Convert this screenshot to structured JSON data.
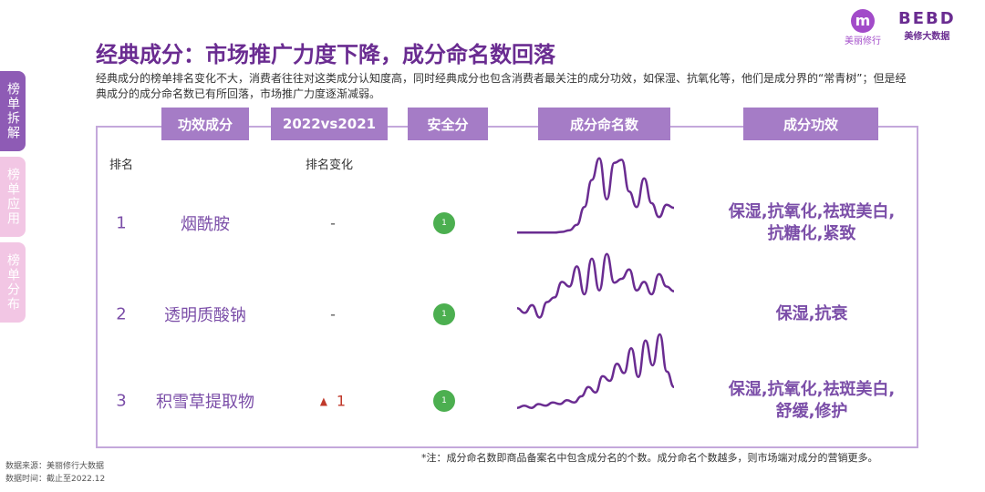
{
  "logo": {
    "brand": "美丽修行",
    "mark": "BEBD",
    "sub": "美修大数据"
  },
  "sidebar": [
    "榜单拆解",
    "榜单应用",
    "榜单分布"
  ],
  "title": "经典成分：市场推广力度下降，成分命名数回落",
  "description": "经典成分的榜单排名变化不大，消费者往往对这类成分认知度高，同时经典成分也包含消费者最关注的成分功效，如保湿、抗氧化等，他们是成分界的“常青树”；但是经典成分的成分命名数已有所回落，市场推广力度逐渐减弱。",
  "table": {
    "headers": [
      "功效成分",
      "2022vs2021",
      "安全分",
      "成分命名数",
      "成分功效"
    ],
    "sub_headers": [
      "排名",
      "排名变化"
    ],
    "rows": [
      {
        "rank": "1",
        "name": "烟酰胺",
        "change": "-",
        "safety": "1",
        "effects": [
          "保湿,抗氧化,祛斑美白,",
          "抗糖化,紧致"
        ],
        "trend": [
          2,
          2,
          2,
          2,
          2,
          2,
          3,
          5,
          12,
          35,
          70,
          98,
          45,
          92,
          96,
          55,
          35,
          72,
          40,
          22,
          38,
          34
        ]
      },
      {
        "rank": "2",
        "name": "透明质酸钠",
        "change": "-",
        "safety": "1",
        "effects": [
          "保湿,抗衰"
        ],
        "trend": [
          22,
          16,
          26,
          10,
          30,
          36,
          56,
          50,
          76,
          40,
          86,
          45,
          92,
          55,
          60,
          72,
          45,
          56,
          40,
          66,
          50,
          44
        ]
      },
      {
        "rank": "3",
        "name": "积雪草提取物",
        "change": "1",
        "direction": "up",
        "safety": "1",
        "effects": [
          "保湿,抗氧化,祛斑美白,",
          "舒缓,修护"
        ],
        "trend": [
          5,
          8,
          5,
          10,
          8,
          12,
          10,
          15,
          12,
          20,
          32,
          25,
          46,
          40,
          62,
          50,
          82,
          45,
          92,
          60,
          100,
          52,
          32
        ]
      }
    ]
  },
  "note": "*注：成分命名数即商品备案名中包含成分名的个数。成分命名个数越多，则市场端对成分的营销更多。",
  "footer": [
    "数据来源：美丽修行大数据",
    "数据时间：截止至2022.12"
  ]
}
